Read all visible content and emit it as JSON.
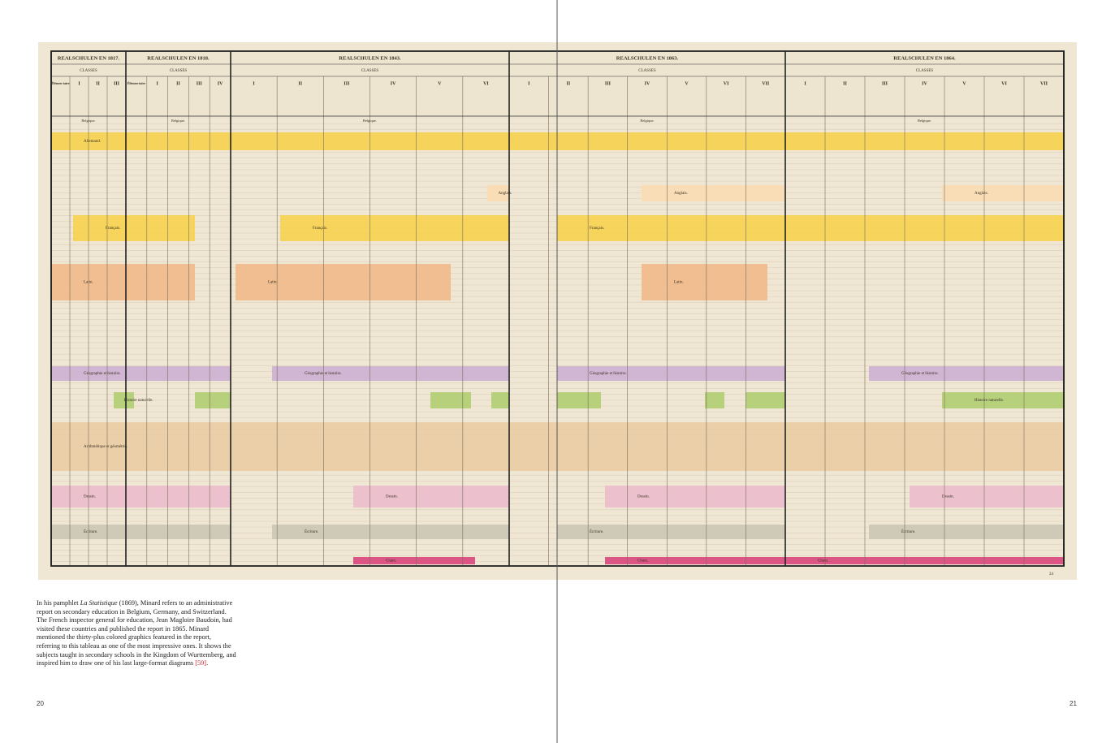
{
  "tableau": {
    "sections": [
      {
        "title": "REALSCHULEN EN 1817.",
        "classes": "CLASSES",
        "columns": [
          "Élémen-taire",
          "I",
          "II",
          "III"
        ]
      },
      {
        "title": "REALSCHULEN EN 1818.",
        "classes": "CLASSES",
        "columns": [
          "Élémen-taire",
          "I",
          "II",
          "III",
          "IV"
        ]
      },
      {
        "title": "REALSCHULEN EN 1843.",
        "classes": "CLASSES",
        "columns": [
          "I",
          "II",
          "III",
          "IV",
          "V",
          "VI"
        ]
      },
      {
        "title": "REALSCHULEN EN 1863.",
        "classes": "CLASSES",
        "columns": [
          "I",
          "II",
          "III",
          "IV",
          "V",
          "VI",
          "VII"
        ]
      },
      {
        "title": "REALSCHULEN EN 1864.",
        "classes": "CLASSES",
        "columns": [
          "I",
          "II",
          "III",
          "IV",
          "V",
          "VI",
          "VII"
        ]
      }
    ],
    "region": "Belgique.",
    "subjects": [
      "Allemand.",
      "Anglais.",
      "Français.",
      "Latin.",
      "Géographie et histoire.",
      "Histoire naturelle.",
      "Arithmétique et géométrie.",
      "Dessin.",
      "Écriture.",
      "Chant."
    ],
    "plate": "24"
  },
  "caption": {
    "before": "In his pamphlet ",
    "work": "La Statistique",
    "text": " (1869), Minard refers to an administrative report on secondary education in Belgium, Germany, and Switzerland. The French inspector general for education, Jean Magloire Baudoin, had visited these countries and published the report in 1865. Minard mentioned the thirty-plus colored graphics featured in the report, referring to this tableau as one of the most impressive ones. It shows the subjects taught in secondary schools in the Kingdom of Wurttemberg, and inspired him to draw one of his last large-format diagrams ",
    "ref": "[59]",
    "end": "."
  },
  "pages": {
    "left": "20",
    "right": "21"
  }
}
